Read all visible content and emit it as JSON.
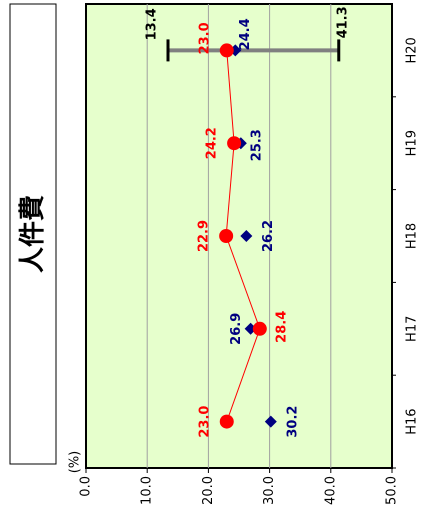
{
  "title": "人件費",
  "chart_data": {
    "type": "line",
    "orientation": "rotated-90",
    "unit_label": "(%)",
    "categories": [
      "H16",
      "H17",
      "H18",
      "H19",
      "H20"
    ],
    "ylim": [
      0,
      50
    ],
    "yticks": [
      "0.0",
      "10.0",
      "20.0",
      "30.0",
      "40.0",
      "50.0"
    ],
    "grid": true,
    "series": [
      {
        "values": [
          23.0,
          28.4,
          22.9,
          24.2,
          23.0
        ],
        "color": "#ff0000",
        "marker": "circle",
        "labels": [
          "23.0",
          "28.4",
          "22.9",
          "24.2",
          "23.0"
        ]
      },
      {
        "values": [
          30.2,
          26.9,
          26.2,
          25.3,
          24.4
        ],
        "color": "#000080",
        "marker": "diamond",
        "labels": [
          "30.2",
          "26.9",
          "26.2",
          "25.3",
          "24.4"
        ]
      }
    ],
    "range": {
      "category": "H20",
      "min": 13.4,
      "max": 41.3,
      "min_label": "13.4",
      "max_label": "41.3",
      "color": "#808080"
    },
    "plot_background": "#e6ffcc"
  }
}
